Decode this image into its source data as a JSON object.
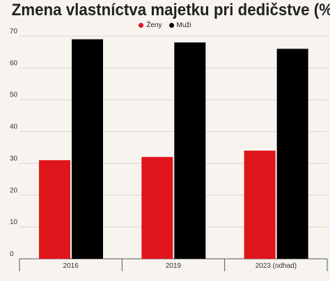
{
  "title": "Zmena vlastníctva majetku pri dedičstve (%)",
  "chart_data": {
    "type": "bar",
    "title": "Zmena vlastníctva majetku pri dedičstve (%)",
    "categories": [
      "2016",
      "2019",
      "2023 (odhad)"
    ],
    "series": [
      {
        "name": "Ženy",
        "color": "#e0151c",
        "values": [
          31,
          32,
          34
        ]
      },
      {
        "name": "Muži",
        "color": "#000000",
        "values": [
          69,
          68,
          66
        ]
      }
    ],
    "xlabel": "",
    "ylabel": "",
    "ylim": [
      0,
      70
    ],
    "yticks": [
      0,
      10,
      20,
      30,
      40,
      50,
      60,
      70
    ],
    "grid": true,
    "legend_position": "top-center"
  }
}
